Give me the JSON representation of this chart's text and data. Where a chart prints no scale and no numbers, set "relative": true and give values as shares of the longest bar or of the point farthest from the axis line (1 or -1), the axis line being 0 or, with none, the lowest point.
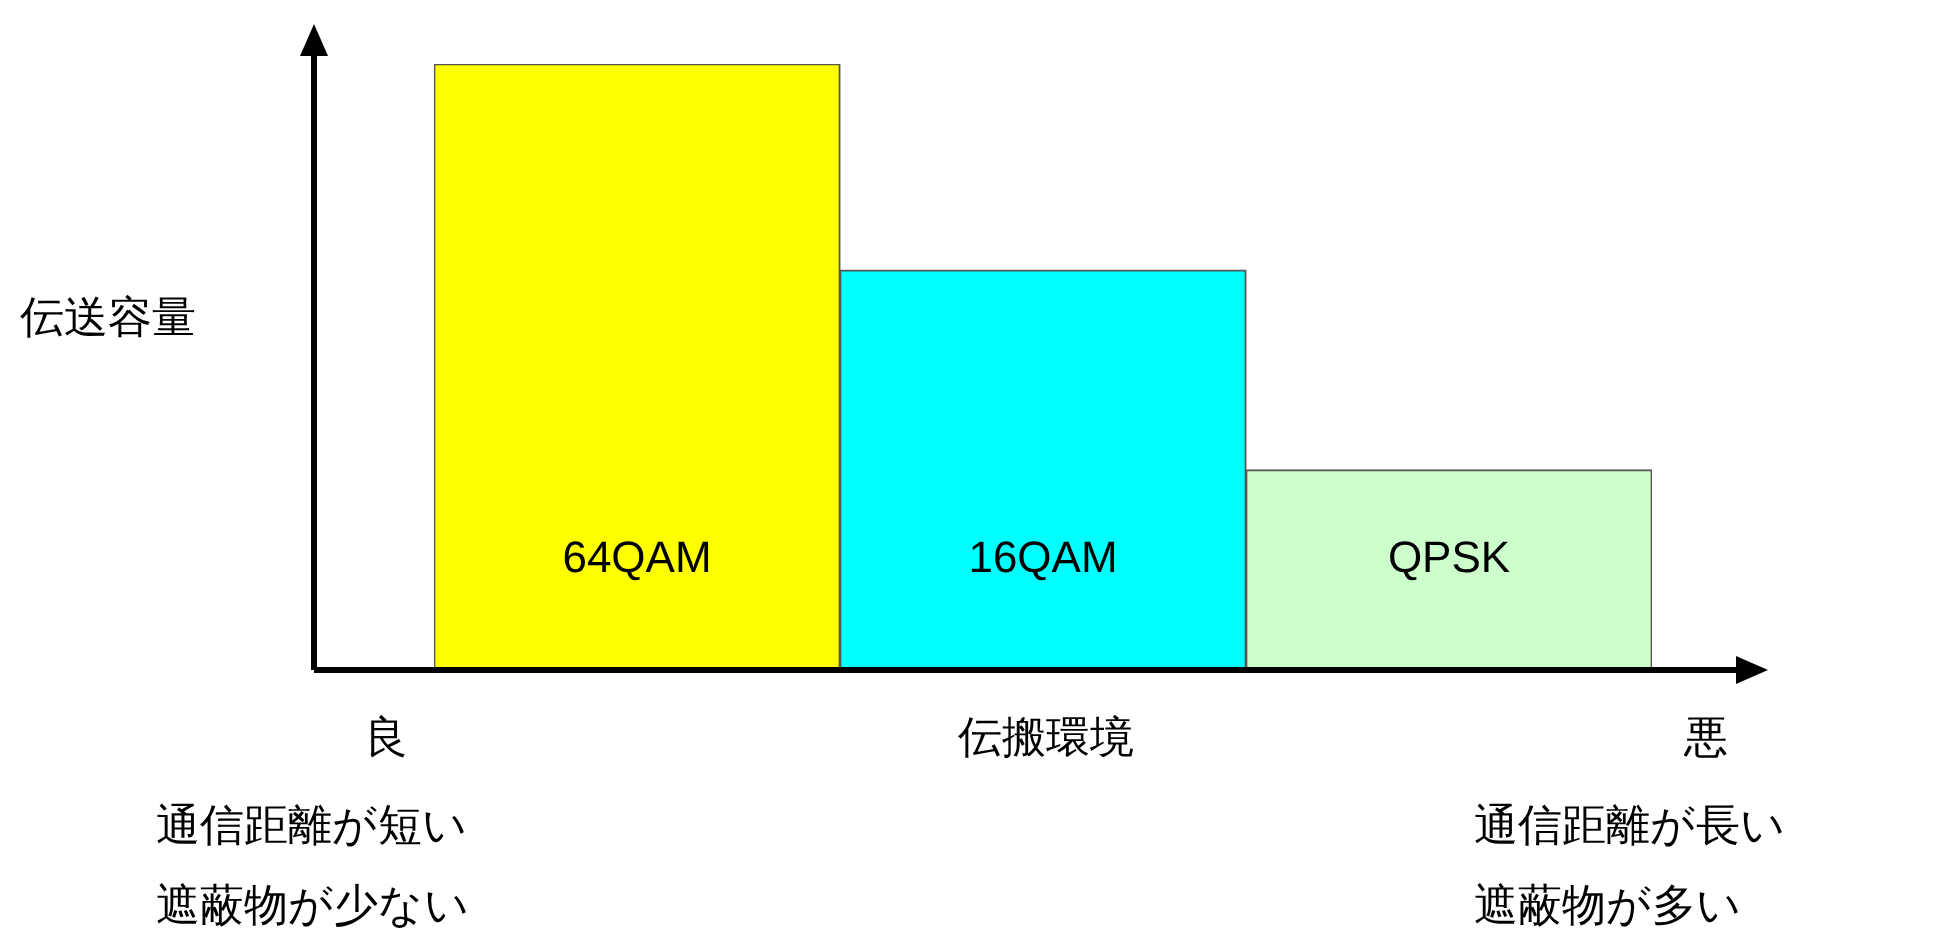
{
  "chart_data": {
    "type": "bar",
    "relative": true,
    "ylabel": "伝送容量",
    "xlabel": "伝搬環境",
    "categories": [
      "64QAM",
      "16QAM",
      "QPSK"
    ],
    "values": [
      1,
      0.66,
      0.33
    ],
    "colors": [
      "#ffff00",
      "#00ffff",
      "#ccffcc"
    ],
    "annotations": [
      "良",
      "悪",
      "通信距離が短い",
      "遮蔽物が少ない",
      "通信距離が長い",
      "遮蔽物が多い"
    ],
    "legend": false
  }
}
